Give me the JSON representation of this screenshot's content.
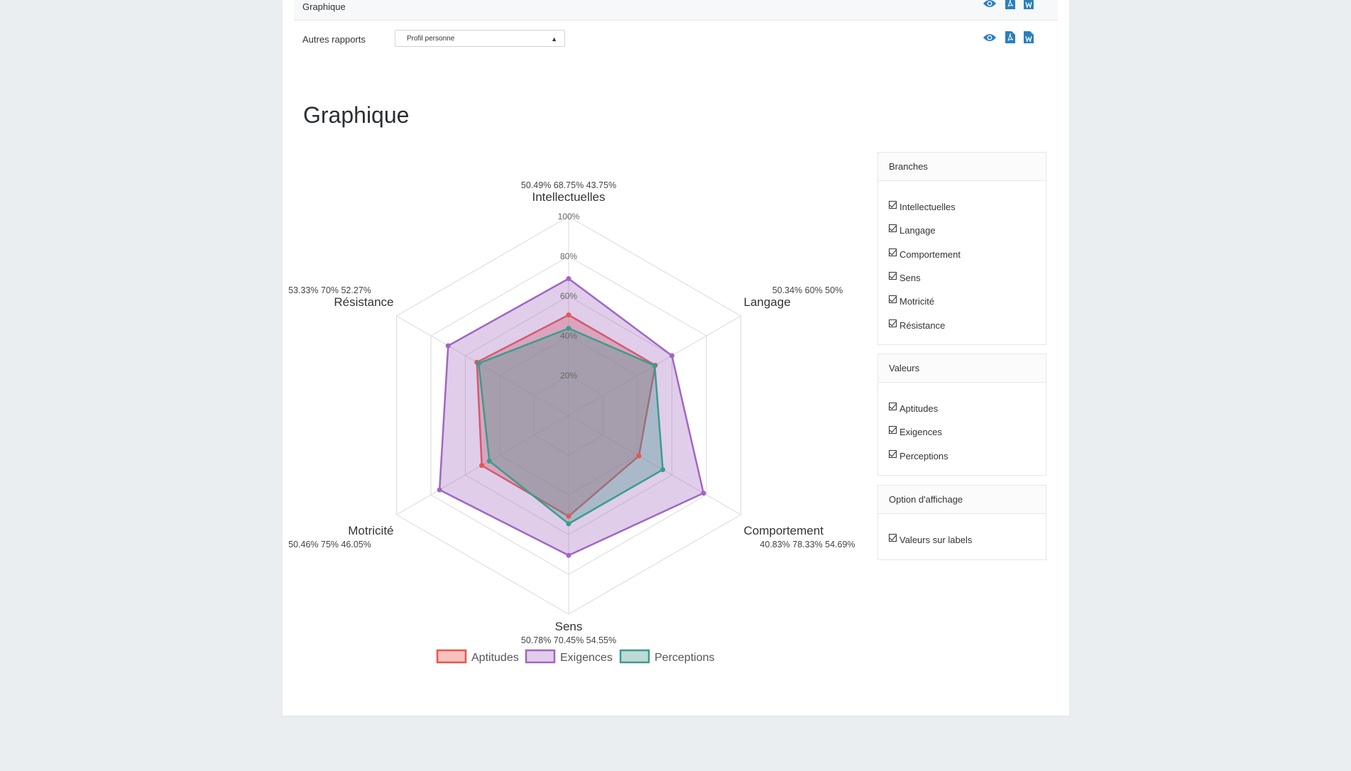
{
  "reports": {
    "top_label": "Graphique",
    "other_label": "Autres rapports",
    "select_value": "Profil personne",
    "icons": [
      "eye-icon",
      "pdf-icon",
      "word-icon"
    ]
  },
  "section_title": "Graphique",
  "filters": {
    "branches": {
      "header": "Branches",
      "items": [
        "Intellectuelles",
        "Langage",
        "Comportement",
        "Sens",
        "Motricité",
        "Résistance"
      ]
    },
    "valeurs": {
      "header": "Valeurs",
      "items": [
        "Aptitudes",
        "Exigences",
        "Perceptions"
      ]
    },
    "options": {
      "header": "Option d'affichage",
      "items": [
        "Valeurs sur labels"
      ]
    }
  },
  "chart_data": {
    "type": "radar",
    "categories": [
      "Intellectuelles",
      "Langage",
      "Comportement",
      "Sens",
      "Motricité",
      "Résistance"
    ],
    "value_labels": [
      "50.49%  68.75%  43.75%",
      "50.34%  60%  50%",
      "40.83%  78.33%  54.69%",
      "50.78%  70.45%  54.55%",
      "50.46%  75%  46.05%",
      "53.33%  70%  52.27%"
    ],
    "series": [
      {
        "name": "Aptitudes",
        "values": [
          50.49,
          50.34,
          40.83,
          50.78,
          50.46,
          53.33
        ],
        "stroke": "#e8574b",
        "fill": "rgba(240,120,110,0.45)"
      },
      {
        "name": "Exigences",
        "values": [
          68.75,
          60,
          78.33,
          70.45,
          75,
          70
        ],
        "stroke": "#a066c4",
        "fill": "rgba(160,100,190,0.32)"
      },
      {
        "name": "Perceptions",
        "values": [
          43.75,
          50,
          54.69,
          54.55,
          46.05,
          52.27
        ],
        "stroke": "#3a9c8c",
        "fill": "rgba(70,150,140,0.35)"
      }
    ],
    "r_ticks": [
      "20%",
      "40%",
      "60%",
      "80%",
      "100%"
    ],
    "r_range": [
      0,
      100
    ],
    "grid": true,
    "legend_position": "bottom"
  }
}
